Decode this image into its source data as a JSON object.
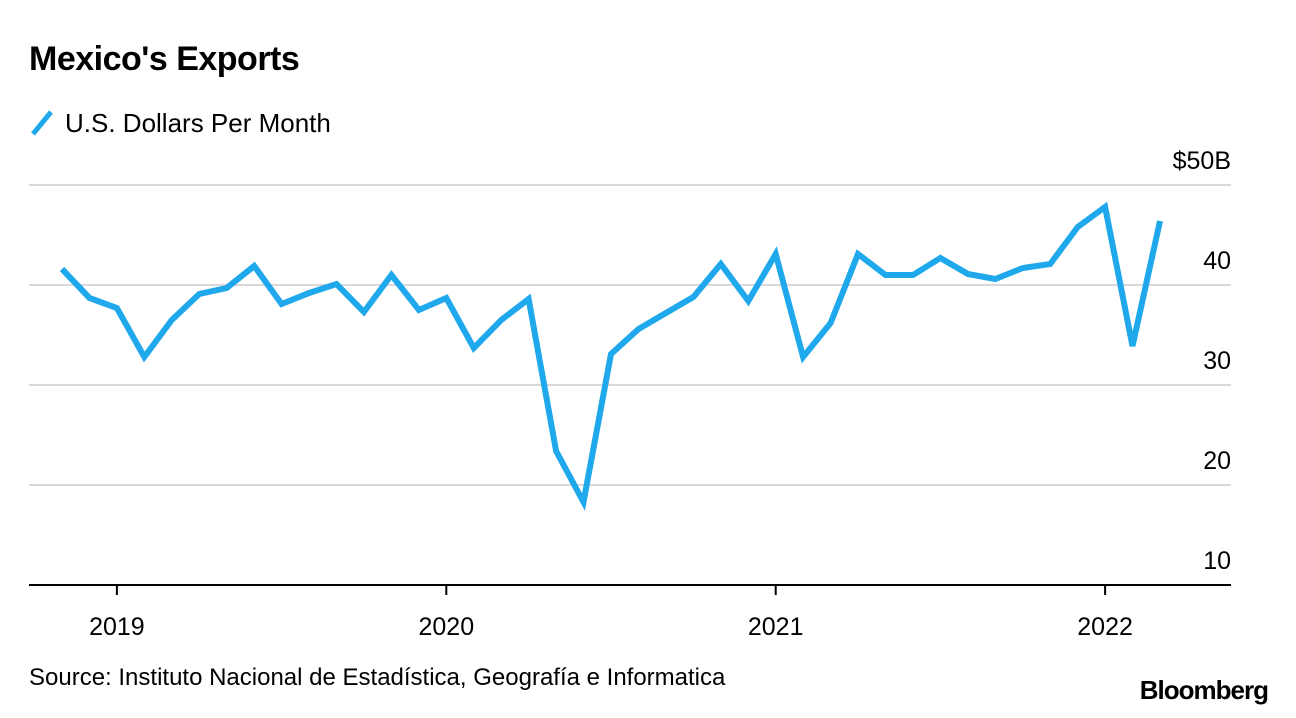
{
  "chart_data": {
    "type": "line",
    "title": "Mexico's Exports",
    "legend": "U.S. Dollars Per Month",
    "y_ticks": [
      "$50B",
      "40",
      "30",
      "20",
      "10"
    ],
    "y_tick_values": [
      50,
      40,
      30,
      20,
      10
    ],
    "ylim": [
      10,
      50
    ],
    "x_ticks": [
      "2019",
      "2020",
      "2021",
      "2022"
    ],
    "x_tick_dates": [
      "2019-01",
      "2020-01",
      "2021-01",
      "2022-01"
    ],
    "xlim": [
      "2018-10",
      "2022-04"
    ],
    "grid": true,
    "series": [
      {
        "color": "#1fa8ec",
        "x": [
          "2018-11",
          "2018-12",
          "2019-01",
          "2019-02",
          "2019-03",
          "2019-04",
          "2019-05",
          "2019-06",
          "2019-07",
          "2019-08",
          "2019-09",
          "2019-10",
          "2019-11",
          "2019-12",
          "2020-01",
          "2020-02",
          "2020-03",
          "2020-04",
          "2020-05",
          "2020-06",
          "2020-07",
          "2020-08",
          "2020-09",
          "2020-10",
          "2020-11",
          "2020-12",
          "2021-01",
          "2021-02",
          "2021-03",
          "2021-04",
          "2021-05",
          "2021-06",
          "2021-07",
          "2021-08",
          "2021-09",
          "2021-10",
          "2021-11",
          "2021-12",
          "2022-01",
          "2022-02",
          "2022-03"
        ],
        "values": [
          41.6,
          38.7,
          37.7,
          32.8,
          36.5,
          39.1,
          39.7,
          41.9,
          38.1,
          39.2,
          40.1,
          37.3,
          41.0,
          37.5,
          38.7,
          33.7,
          36.5,
          38.6,
          23.4,
          18.3,
          33.1,
          35.6,
          37.2,
          38.8,
          42.1,
          38.4,
          43.1,
          32.8,
          36.2,
          43.1,
          41.0,
          41.0,
          42.7,
          41.1,
          40.6,
          41.7,
          42.1,
          45.8,
          47.8,
          33.9,
          46.4
        ]
      }
    ]
  },
  "footer": {
    "source": "Source: Instituto Nacional de Estadística, Geografía e Informatica",
    "logo": "Bloomberg"
  },
  "colors": {
    "line": "#1fa8ec",
    "grid": "#d9d9d9",
    "axis": "#000000"
  }
}
